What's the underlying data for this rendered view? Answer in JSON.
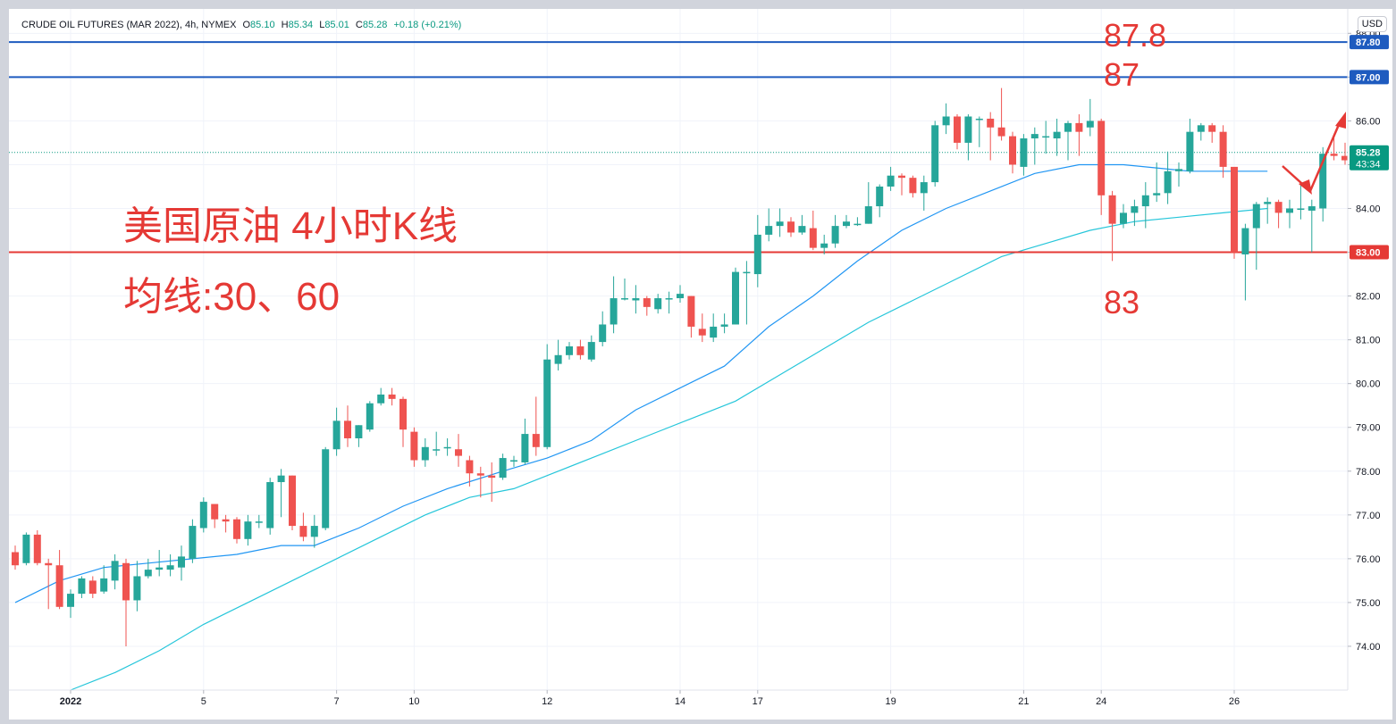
{
  "header": {
    "symbol": "CRUDE OIL FUTURES (MAR 2022), 4h, NYMEX",
    "open_label": "O",
    "open": "85.10",
    "high_label": "H",
    "high": "85.34",
    "low_label": "L",
    "low": "85.01",
    "close_label": "C",
    "close": "85.28",
    "change": "+0.18 (+0.21%)",
    "currency_button": "USD"
  },
  "annotations": {
    "title_line1": "美国原油 4小时K线",
    "title_line2": "均线:30、60",
    "label_878": "87.8",
    "label_87": "87",
    "label_83": "83"
  },
  "colors": {
    "up": "#26a69a",
    "down": "#ef5350",
    "ma30": "#2196f3",
    "ma60": "#26c6da",
    "level_blue": "#1e5bbf",
    "level_red": "#e53935",
    "annotation": "#e53935",
    "price_line": "#089981"
  },
  "chart_data": {
    "type": "candlestick",
    "y_range": [
      73.0,
      88.3
    ],
    "y_ticks": [
      "74.00",
      "75.00",
      "76.00",
      "77.00",
      "78.00",
      "79.00",
      "80.00",
      "81.00",
      "82.00",
      "83.00",
      "84.00",
      "85.00",
      "86.00",
      "87.00",
      "88.00"
    ],
    "x_tick_labels": [
      {
        "bar": 5,
        "label": "2022"
      },
      {
        "bar": 17,
        "label": "5"
      },
      {
        "bar": 29,
        "label": "7"
      },
      {
        "bar": 36,
        "label": "10"
      },
      {
        "bar": 48,
        "label": "12"
      },
      {
        "bar": 60,
        "label": "14"
      },
      {
        "bar": 67,
        "label": "17"
      },
      {
        "bar": 79,
        "label": "19"
      },
      {
        "bar": 91,
        "label": "21"
      },
      {
        "bar": 98,
        "label": "24"
      },
      {
        "bar": 110,
        "label": "26"
      }
    ],
    "horizontal_levels": [
      {
        "value": 87.8,
        "label": "87.80",
        "color": "blue"
      },
      {
        "value": 87.0,
        "label": "87.00",
        "color": "blue"
      },
      {
        "value": 83.0,
        "label": "83.00",
        "color": "red"
      }
    ],
    "current_price": {
      "value": 85.28,
      "label": "85.28",
      "countdown": "43:34"
    },
    "ma_series": [
      {
        "period": 30,
        "points": [
          [
            0,
            75.0
          ],
          [
            4,
            75.5
          ],
          [
            8,
            75.8
          ],
          [
            12,
            75.9
          ],
          [
            16,
            76.0
          ],
          [
            20,
            76.1
          ],
          [
            24,
            76.3
          ],
          [
            27,
            76.3
          ],
          [
            31,
            76.7
          ],
          [
            35,
            77.2
          ],
          [
            39,
            77.6
          ],
          [
            44,
            78.0
          ],
          [
            48,
            78.3
          ],
          [
            52,
            78.7
          ],
          [
            56,
            79.4
          ],
          [
            60,
            79.9
          ],
          [
            64,
            80.4
          ],
          [
            68,
            81.3
          ],
          [
            72,
            82.0
          ],
          [
            76,
            82.8
          ],
          [
            80,
            83.5
          ],
          [
            84,
            84.0
          ],
          [
            88,
            84.4
          ],
          [
            92,
            84.8
          ],
          [
            96,
            85.0
          ],
          [
            100,
            85.0
          ],
          [
            104,
            84.9
          ],
          [
            106,
            84.85
          ],
          [
            110,
            84.85
          ],
          [
            113,
            84.85
          ]
        ]
      },
      {
        "period": 60,
        "points": [
          [
            5,
            73.0
          ],
          [
            9,
            73.4
          ],
          [
            13,
            73.9
          ],
          [
            17,
            74.5
          ],
          [
            21,
            75.0
          ],
          [
            25,
            75.5
          ],
          [
            29,
            76.0
          ],
          [
            33,
            76.5
          ],
          [
            37,
            77.0
          ],
          [
            41,
            77.4
          ],
          [
            45,
            77.6
          ],
          [
            49,
            78.0
          ],
          [
            53,
            78.4
          ],
          [
            57,
            78.8
          ],
          [
            61,
            79.2
          ],
          [
            65,
            79.6
          ],
          [
            69,
            80.2
          ],
          [
            73,
            80.8
          ],
          [
            77,
            81.4
          ],
          [
            81,
            81.9
          ],
          [
            85,
            82.4
          ],
          [
            89,
            82.9
          ],
          [
            93,
            83.2
          ],
          [
            97,
            83.5
          ],
          [
            101,
            83.7
          ],
          [
            105,
            83.8
          ],
          [
            109,
            83.9
          ],
          [
            113,
            84.0
          ]
        ]
      }
    ],
    "candles": [
      [
        76.15,
        75.85,
        76.3,
        75.75
      ],
      [
        75.9,
        76.55,
        76.6,
        75.85
      ],
      [
        76.55,
        75.9,
        76.65,
        75.85
      ],
      [
        75.9,
        75.85,
        76.0,
        74.85
      ],
      [
        75.85,
        74.9,
        76.2,
        74.85
      ],
      [
        74.9,
        75.2,
        75.3,
        74.65
      ],
      [
        75.2,
        75.55,
        75.6,
        75.1
      ],
      [
        75.5,
        75.2,
        75.6,
        75.1
      ],
      [
        75.25,
        75.55,
        75.85,
        75.2
      ],
      [
        75.5,
        75.95,
        76.1,
        75.3
      ],
      [
        75.9,
        75.05,
        76.0,
        74.0
      ],
      [
        75.05,
        75.6,
        75.95,
        74.8
      ],
      [
        75.6,
        75.75,
        76.0,
        75.55
      ],
      [
        75.75,
        75.8,
        76.2,
        75.6
      ],
      [
        75.75,
        75.85,
        76.1,
        75.6
      ],
      [
        75.8,
        76.05,
        76.3,
        75.5
      ],
      [
        76.0,
        76.75,
        76.9,
        75.9
      ],
      [
        76.7,
        77.3,
        77.4,
        76.6
      ],
      [
        77.25,
        76.9,
        77.2,
        76.7
      ],
      [
        76.9,
        76.85,
        77.0,
        76.6
      ],
      [
        76.9,
        76.45,
        76.95,
        76.35
      ],
      [
        76.45,
        76.85,
        77.0,
        76.3
      ],
      [
        76.85,
        76.85,
        77.0,
        76.7
      ],
      [
        76.7,
        77.75,
        77.85,
        76.55
      ],
      [
        77.75,
        77.9,
        78.05,
        76.95
      ],
      [
        77.9,
        76.75,
        77.9,
        76.65
      ],
      [
        76.75,
        76.5,
        77.05,
        76.4
      ],
      [
        76.5,
        76.75,
        77.0,
        76.25
      ],
      [
        76.7,
        78.5,
        78.55,
        76.65
      ],
      [
        78.5,
        79.15,
        79.45,
        78.35
      ],
      [
        79.15,
        78.75,
        79.5,
        78.55
      ],
      [
        78.75,
        79.05,
        79.05,
        78.55
      ],
      [
        78.95,
        79.55,
        79.6,
        78.9
      ],
      [
        79.55,
        79.75,
        79.9,
        79.5
      ],
      [
        79.75,
        79.65,
        79.9,
        79.5
      ],
      [
        79.65,
        78.95,
        79.7,
        78.55
      ],
      [
        78.9,
        78.25,
        79.0,
        78.1
      ],
      [
        78.25,
        78.55,
        78.75,
        78.1
      ],
      [
        78.5,
        78.5,
        78.9,
        78.35
      ],
      [
        78.55,
        78.55,
        78.75,
        78.35
      ],
      [
        78.5,
        78.35,
        78.85,
        78.1
      ],
      [
        78.25,
        77.95,
        78.35,
        77.65
      ],
      [
        77.95,
        77.9,
        78.1,
        77.4
      ],
      [
        77.9,
        77.85,
        78.2,
        77.3
      ],
      [
        77.85,
        78.3,
        78.4,
        77.8
      ],
      [
        78.25,
        78.25,
        78.35,
        78.1
      ],
      [
        78.2,
        78.85,
        79.2,
        78.15
      ],
      [
        78.85,
        78.55,
        79.7,
        78.35
      ],
      [
        78.55,
        80.55,
        80.9,
        78.5
      ],
      [
        80.45,
        80.65,
        81.0,
        80.3
      ],
      [
        80.65,
        80.85,
        80.95,
        80.55
      ],
      [
        80.85,
        80.65,
        81.0,
        80.55
      ],
      [
        80.55,
        80.95,
        81.1,
        80.5
      ],
      [
        80.95,
        81.35,
        81.65,
        80.85
      ],
      [
        81.35,
        81.95,
        82.45,
        81.15
      ],
      [
        81.95,
        81.95,
        82.4,
        81.9
      ],
      [
        81.9,
        81.95,
        82.25,
        81.6
      ],
      [
        81.95,
        81.75,
        82.0,
        81.55
      ],
      [
        81.7,
        81.95,
        82.05,
        81.6
      ],
      [
        81.95,
        81.95,
        82.1,
        81.6
      ],
      [
        81.95,
        82.05,
        82.25,
        81.85
      ],
      [
        82.0,
        81.3,
        82.0,
        81.05
      ],
      [
        81.25,
        81.1,
        81.6,
        80.95
      ],
      [
        81.05,
        81.3,
        81.6,
        80.95
      ],
      [
        81.3,
        81.35,
        81.6,
        81.15
      ],
      [
        81.35,
        82.55,
        82.65,
        81.35
      ],
      [
        82.55,
        82.55,
        82.8,
        81.35
      ],
      [
        82.5,
        83.4,
        83.85,
        82.2
      ],
      [
        83.4,
        83.6,
        84.0,
        83.25
      ],
      [
        83.6,
        83.7,
        84.0,
        83.35
      ],
      [
        83.7,
        83.45,
        83.8,
        83.35
      ],
      [
        83.45,
        83.6,
        83.85,
        83.4
      ],
      [
        83.55,
        83.1,
        83.95,
        83.05
      ],
      [
        83.1,
        83.2,
        83.4,
        82.95
      ],
      [
        83.2,
        83.6,
        83.85,
        83.1
      ],
      [
        83.6,
        83.7,
        83.85,
        83.55
      ],
      [
        83.65,
        83.65,
        83.8,
        83.6
      ],
      [
        83.65,
        84.05,
        84.6,
        83.65
      ],
      [
        84.05,
        84.5,
        84.55,
        83.8
      ],
      [
        84.5,
        84.75,
        84.95,
        84.4
      ],
      [
        84.75,
        84.7,
        84.8,
        84.3
      ],
      [
        84.7,
        84.35,
        84.75,
        84.25
      ],
      [
        84.35,
        84.6,
        84.75,
        83.95
      ],
      [
        84.6,
        85.9,
        86.0,
        84.5
      ],
      [
        85.9,
        86.1,
        86.4,
        85.7
      ],
      [
        86.1,
        85.5,
        86.15,
        85.35
      ],
      [
        85.5,
        86.1,
        86.15,
        85.1
      ],
      [
        86.05,
        86.05,
        86.1,
        85.4
      ],
      [
        86.05,
        85.85,
        86.2,
        85.1
      ],
      [
        85.85,
        85.65,
        86.75,
        85.55
      ],
      [
        85.65,
        85.0,
        85.75,
        84.8
      ],
      [
        84.95,
        85.6,
        85.7,
        84.75
      ],
      [
        85.6,
        85.7,
        85.85,
        85.0
      ],
      [
        85.65,
        85.65,
        86.0,
        85.25
      ],
      [
        85.6,
        85.75,
        86.05,
        85.2
      ],
      [
        85.75,
        85.95,
        86.0,
        85.1
      ],
      [
        85.95,
        85.75,
        86.15,
        85.2
      ],
      [
        85.85,
        86.0,
        86.5,
        85.65
      ],
      [
        86.0,
        84.3,
        86.05,
        83.85
      ],
      [
        84.3,
        83.65,
        84.4,
        82.8
      ],
      [
        83.65,
        83.9,
        84.1,
        83.55
      ],
      [
        83.9,
        84.05,
        84.2,
        83.6
      ],
      [
        84.05,
        84.3,
        84.6,
        83.55
      ],
      [
        84.3,
        84.35,
        85.05,
        84.15
      ],
      [
        84.35,
        84.85,
        85.3,
        84.1
      ],
      [
        84.85,
        84.9,
        85.05,
        84.5
      ],
      [
        84.85,
        85.75,
        86.05,
        84.8
      ],
      [
        85.75,
        85.9,
        85.95,
        85.55
      ],
      [
        85.9,
        85.75,
        85.95,
        85.5
      ],
      [
        85.75,
        84.95,
        85.9,
        84.7
      ],
      [
        84.95,
        83.0,
        84.75,
        82.85
      ],
      [
        82.95,
        83.55,
        83.65,
        81.9
      ],
      [
        83.55,
        84.1,
        84.15,
        82.6
      ],
      [
        84.1,
        84.15,
        84.25,
        83.65
      ],
      [
        84.15,
        83.9,
        84.2,
        83.55
      ],
      [
        83.9,
        84.0,
        84.2,
        83.55
      ],
      [
        84.0,
        84.0,
        84.55,
        83.75
      ],
      [
        83.95,
        84.05,
        84.2,
        83.0
      ],
      [
        84.0,
        85.25,
        85.4,
        83.7
      ],
      [
        85.25,
        85.2,
        85.7,
        85.1
      ],
      [
        85.2,
        85.1,
        85.5,
        85.0
      ],
      [
        85.1,
        85.28,
        85.34,
        85.01
      ]
    ]
  }
}
